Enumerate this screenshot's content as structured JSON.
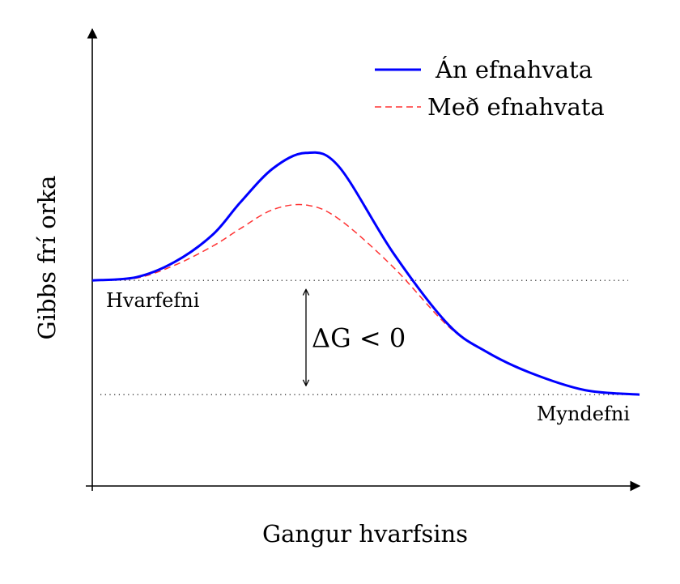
{
  "chart_data": {
    "type": "line",
    "title": "",
    "xlabel": "Gangur hvarfsins",
    "ylabel": "Gibbs frí orka",
    "xlim": [
      0,
      10
    ],
    "ylim": [
      0,
      10
    ],
    "grid": false,
    "legend_position": "top-right",
    "series": [
      {
        "name": "Án efnahvata",
        "color": "#0000ff",
        "style": "solid",
        "points": [
          [
            0,
            4.5
          ],
          [
            0.8,
            4.57
          ],
          [
            1.5,
            4.9
          ],
          [
            2.2,
            5.5
          ],
          [
            2.7,
            6.2
          ],
          [
            3.3,
            6.95
          ],
          [
            3.9,
            7.29
          ],
          [
            4.5,
            7.0
          ],
          [
            5.5,
            5.1
          ],
          [
            6.5,
            3.54
          ],
          [
            7.2,
            2.94
          ],
          [
            8.0,
            2.48
          ],
          [
            9.0,
            2.1
          ],
          [
            10.0,
            2.0
          ]
        ]
      },
      {
        "name": "Með efnahvata",
        "color": "#ff3333",
        "style": "dashed",
        "points": [
          [
            0,
            4.5
          ],
          [
            0.8,
            4.55
          ],
          [
            1.5,
            4.83
          ],
          [
            2.2,
            5.25
          ],
          [
            2.7,
            5.63
          ],
          [
            3.3,
            6.05
          ],
          [
            3.9,
            6.15
          ],
          [
            4.5,
            5.85
          ],
          [
            5.5,
            4.79
          ],
          [
            6.5,
            3.5
          ],
          [
            7.2,
            2.94
          ],
          [
            8.0,
            2.48
          ],
          [
            9.0,
            2.1
          ],
          [
            10.0,
            2.0
          ]
        ]
      }
    ],
    "reference_lines": [
      {
        "y": 4.5,
        "style": "dotted",
        "label": "Hvarfefni"
      },
      {
        "y": 2.0,
        "style": "dotted",
        "label": "Myndefni"
      }
    ],
    "annotation": {
      "text": "ΔG < 0",
      "from_y": 4.5,
      "to_y": 2.0
    }
  }
}
